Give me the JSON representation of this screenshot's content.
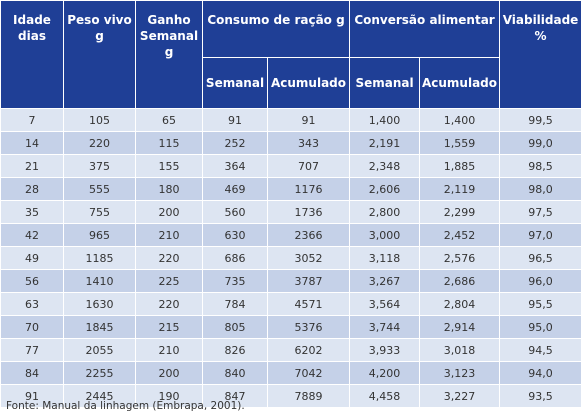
{
  "table": {
    "headers": {
      "idade": "Idade dias",
      "peso": "Peso vivo g",
      "ganho": "Ganho Semanal g",
      "consumo": "Consumo de ração g",
      "conversao": "Conversão alimentar",
      "viabilidade": "Viabilidade %",
      "consumo_semanal": "Semanal",
      "consumo_acumulado": "Acumulado",
      "conversao_semanal": "Semanal",
      "conversao_acumulado": "Acumulado"
    },
    "rows": [
      [
        "7",
        "105",
        "65",
        "91",
        "91",
        "1,400",
        "1,400",
        "99,5"
      ],
      [
        "14",
        "220",
        "115",
        "252",
        "343",
        "2,191",
        "1,559",
        "99,0"
      ],
      [
        "21",
        "375",
        "155",
        "364",
        "707",
        "2,348",
        "1,885",
        "98,5"
      ],
      [
        "28",
        "555",
        "180",
        "469",
        "1176",
        "2,606",
        "2,119",
        "98,0"
      ],
      [
        "35",
        "755",
        "200",
        "560",
        "1736",
        "2,800",
        "2,299",
        "97,5"
      ],
      [
        "42",
        "965",
        "210",
        "630",
        "2366",
        "3,000",
        "2,452",
        "97,0"
      ],
      [
        "49",
        "1185",
        "220",
        "686",
        "3052",
        "3,118",
        "2,576",
        "96,5"
      ],
      [
        "56",
        "1410",
        "225",
        "735",
        "3787",
        "3,267",
        "2,686",
        "96,0"
      ],
      [
        "63",
        "1630",
        "220",
        "784",
        "4571",
        "3,564",
        "2,804",
        "95,5"
      ],
      [
        "70",
        "1845",
        "215",
        "805",
        "5376",
        "3,744",
        "2,914",
        "95,0"
      ],
      [
        "77",
        "2055",
        "210",
        "826",
        "6202",
        "3,933",
        "3,018",
        "94,5"
      ],
      [
        "84",
        "2255",
        "200",
        "840",
        "7042",
        "4,200",
        "3,123",
        "94,0"
      ],
      [
        "91",
        "2445",
        "190",
        "847",
        "7889",
        "4,458",
        "3,227",
        "93,5"
      ]
    ]
  },
  "source": "Fonte: Manual da linhagem (Embrapa, 2001).",
  "colors": {
    "header_bg": "#1f3f96",
    "header_text": "#ffffff",
    "row_light": "#dde5f2",
    "row_dark": "#c5d1e8"
  }
}
